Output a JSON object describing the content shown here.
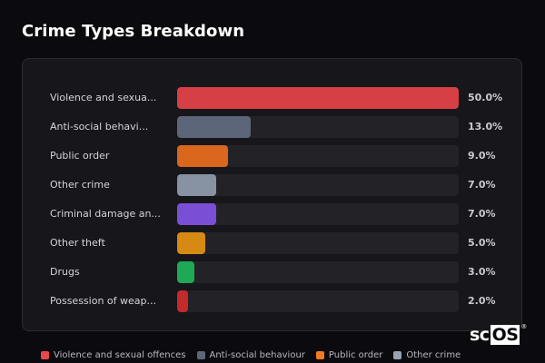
{
  "header": {
    "title": "Crime Types Breakdown"
  },
  "chart_data": {
    "type": "bar",
    "orientation": "horizontal",
    "title": "Crime Types Breakdown",
    "xlabel": "",
    "ylabel": "",
    "xlim": [
      0,
      50
    ],
    "grid": false,
    "legend_position": "bottom",
    "categories": [
      "Violence and sexual offences",
      "Anti-social behaviour",
      "Public order",
      "Other crime",
      "Criminal damage and arson",
      "Other theft",
      "Drugs",
      "Possession of weapons"
    ],
    "display_labels": [
      "Violence and sexua...",
      "Anti-social behavi...",
      "Public order",
      "Other crime",
      "Criminal damage an...",
      "Other theft",
      "Drugs",
      "Possession of weap..."
    ],
    "values": [
      50.0,
      13.0,
      9.0,
      7.0,
      7.0,
      5.0,
      3.0,
      2.0
    ],
    "value_labels": [
      "50.0%",
      "13.0%",
      "9.0%",
      "7.0%",
      "7.0%",
      "5.0%",
      "3.0%",
      "2.0%"
    ],
    "colors": [
      "#d64045",
      "#5c6678",
      "#d9671e",
      "#8792a2",
      "#7a4fd6",
      "#d68a14",
      "#1fa855",
      "#c42a2a"
    ]
  },
  "legend": {
    "items": [
      {
        "label": "Violence and sexual offences",
        "color": "#e9474b"
      },
      {
        "label": "Anti-social behaviour",
        "color": "#5c6678"
      },
      {
        "label": "Public order",
        "color": "#f27a22"
      },
      {
        "label": "Other crime",
        "color": "#97a3b4"
      }
    ]
  },
  "watermark": {
    "prefix": "sc",
    "highlight": "OS",
    "mark": "®"
  }
}
